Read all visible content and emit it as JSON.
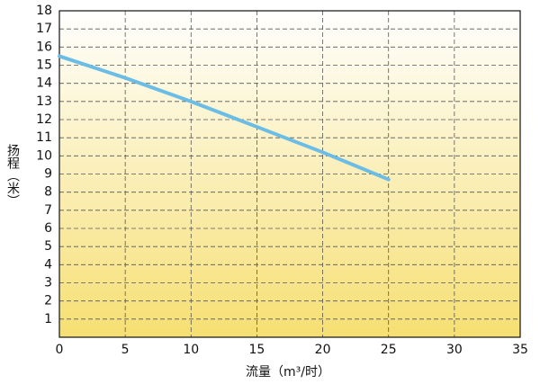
{
  "chart_data": {
    "type": "line",
    "x_label": "流量（m³/时）",
    "y_label": "扬程（米）",
    "x": [
      0,
      5,
      10,
      15,
      20,
      25
    ],
    "series": [
      {
        "name": null,
        "color": "#6cbde6",
        "values": [
          15.5,
          14.3,
          13.0,
          11.6,
          10.2,
          8.7
        ]
      }
    ],
    "xlim": [
      0,
      35
    ],
    "xticks": [
      0,
      5,
      10,
      15,
      20,
      25,
      30,
      35
    ],
    "ylim": [
      0,
      18
    ],
    "yticks": [
      1,
      2,
      3,
      4,
      5,
      6,
      7,
      8,
      9,
      10,
      11,
      12,
      13,
      14,
      15,
      16,
      17,
      18
    ],
    "grid": true
  }
}
